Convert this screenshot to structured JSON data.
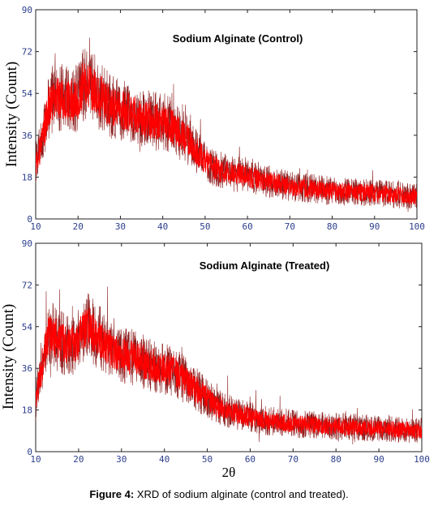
{
  "chart_data": [
    {
      "type": "line",
      "title": "Sodium Alginate (Control)",
      "xlabel": "",
      "ylabel": "Intensity (Count)",
      "xlim": [
        10,
        100
      ],
      "ylim": [
        0,
        90
      ],
      "xticks": [
        10,
        20,
        30,
        40,
        50,
        60,
        70,
        80,
        90,
        100
      ],
      "yticks": [
        0,
        18,
        36,
        54,
        72,
        90
      ],
      "grid": false,
      "line_color": "#ff0000",
      "noise_color": "#8b1a1a",
      "series": [
        {
          "x": [
            10,
            11,
            12,
            13,
            14,
            16,
            18,
            20,
            21,
            22,
            24,
            26,
            28,
            30,
            32,
            34,
            36,
            38,
            40,
            42,
            44,
            46,
            48,
            50,
            52,
            55,
            58,
            60,
            62,
            65,
            68,
            70,
            75,
            80,
            85,
            90,
            95,
            100
          ],
          "values": [
            24,
            30,
            38,
            48,
            52,
            52,
            51,
            52,
            57,
            58,
            56,
            51,
            48,
            47,
            46,
            44,
            43,
            42,
            42,
            40,
            37,
            34,
            29,
            25,
            22,
            20,
            19,
            18,
            17.5,
            16,
            15,
            14,
            13,
            12,
            11.5,
            11,
            10.5,
            9.5
          ]
        }
      ]
    },
    {
      "type": "line",
      "title": "Sodium Alginate (Treated)",
      "xlabel": "2θ",
      "ylabel": "Intensity (Count)",
      "xlim": [
        10,
        100
      ],
      "ylim": [
        0,
        90
      ],
      "xticks": [
        10,
        20,
        30,
        40,
        50,
        60,
        70,
        80,
        90,
        100
      ],
      "yticks": [
        0,
        18,
        36,
        54,
        72,
        90
      ],
      "grid": false,
      "line_color": "#ff0000",
      "noise_color": "#8b1a1a",
      "series": [
        {
          "x": [
            10,
            11,
            12,
            13,
            14,
            16,
            18,
            20,
            21,
            22,
            24,
            26,
            28,
            30,
            32,
            34,
            36,
            38,
            40,
            42,
            44,
            46,
            48,
            50,
            52,
            55,
            58,
            60,
            62,
            65,
            68,
            70,
            75,
            80,
            85,
            90,
            95,
            100
          ],
          "values": [
            22,
            32,
            42,
            50,
            50,
            47,
            46,
            48,
            52,
            54,
            51,
            47,
            43,
            42,
            41,
            40,
            38,
            37,
            36,
            35,
            32,
            29,
            26,
            23,
            20,
            17.5,
            16,
            15,
            14,
            13,
            12.5,
            12,
            11.5,
            11,
            10.5,
            10,
            9.5,
            9
          ]
        }
      ]
    }
  ],
  "caption": {
    "label": "Figure 4:",
    "text": " XRD of sodium alginate (control and treated)."
  }
}
